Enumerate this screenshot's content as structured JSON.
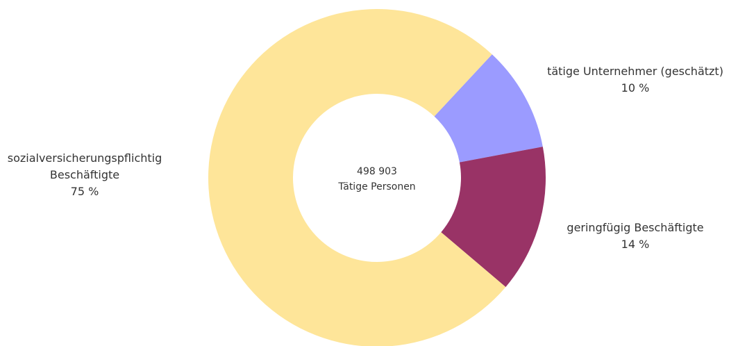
{
  "chart_data": {
    "type": "donut",
    "categories": [
      "tätige Unternehmer (geschätzt)",
      "geringfügig Beschäftigte",
      "sozialversicherungspflichtig Beschäftigte"
    ],
    "values": [
      10,
      14,
      75
    ],
    "value_labels": [
      "10 %",
      "14 %",
      "75 %"
    ],
    "colors": [
      "#9b9bff",
      "#993366",
      "#fee599"
    ],
    "center_value": "498 903",
    "center_label": "Tätige Personen"
  }
}
